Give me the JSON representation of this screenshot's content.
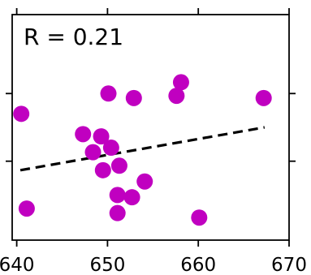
{
  "chart_data": {
    "type": "scatter",
    "xlim": [
      639.5,
      670
    ],
    "ylim": [
      0,
      1
    ],
    "x_ticks": [
      640,
      650,
      660,
      670
    ],
    "x_tick_labels": [
      "640",
      "650",
      "660",
      "670"
    ],
    "y_ticks": [
      0.35,
      0.65
    ],
    "y_tick_labels": [
      "",
      ""
    ],
    "grid": false,
    "legend": "none",
    "annotation": "R = 0.21",
    "colors": {
      "points": "#c000c0",
      "trend": "#000000",
      "axes": "#000000"
    },
    "points": [
      {
        "x": 640.5,
        "y": 0.56
      },
      {
        "x": 641.1,
        "y": 0.14
      },
      {
        "x": 647.3,
        "y": 0.47
      },
      {
        "x": 648.4,
        "y": 0.39
      },
      {
        "x": 649.3,
        "y": 0.46
      },
      {
        "x": 649.5,
        "y": 0.31
      },
      {
        "x": 650.4,
        "y": 0.41
      },
      {
        "x": 650.1,
        "y": 0.65
      },
      {
        "x": 651.1,
        "y": 0.2
      },
      {
        "x": 651.3,
        "y": 0.33
      },
      {
        "x": 651.1,
        "y": 0.12
      },
      {
        "x": 652.7,
        "y": 0.19
      },
      {
        "x": 652.9,
        "y": 0.63
      },
      {
        "x": 654.1,
        "y": 0.26
      },
      {
        "x": 657.6,
        "y": 0.64
      },
      {
        "x": 658.1,
        "y": 0.7
      },
      {
        "x": 660.1,
        "y": 0.1
      },
      {
        "x": 667.2,
        "y": 0.63
      }
    ],
    "trend_line": {
      "style": "dashed",
      "x": [
        640.4,
        667.3
      ],
      "y": [
        0.31,
        0.5
      ]
    }
  }
}
